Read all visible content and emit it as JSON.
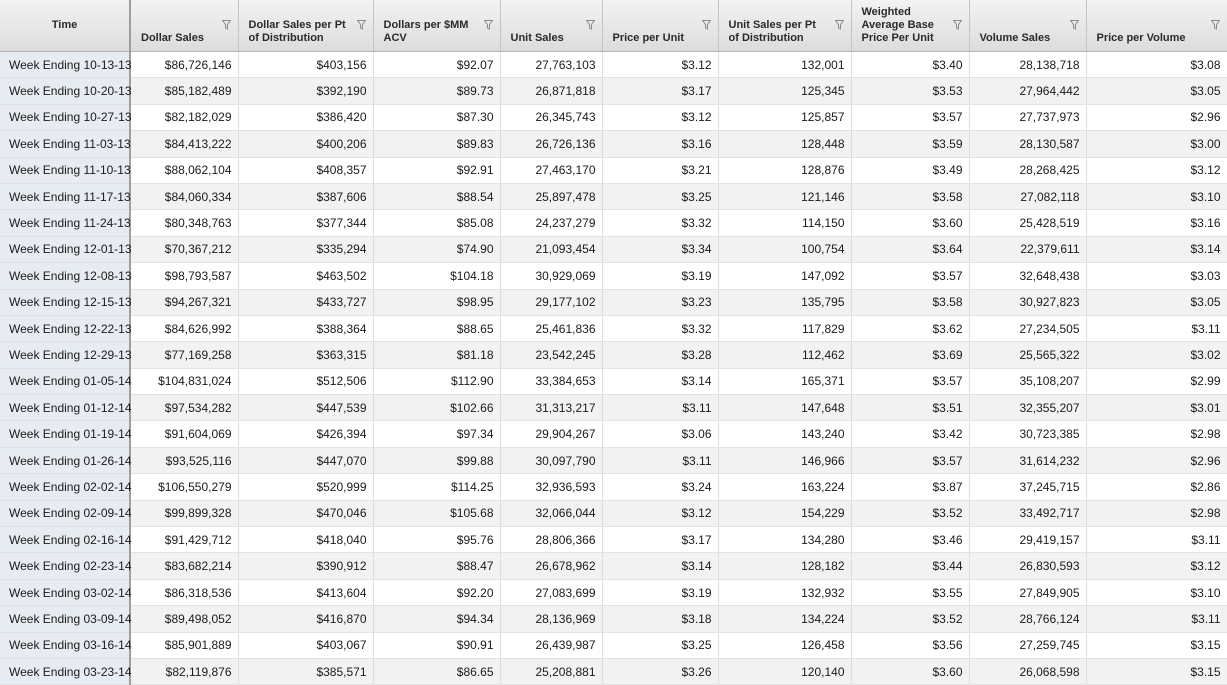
{
  "columns": [
    "Time",
    "Dollar Sales",
    "Dollar Sales per Pt of Distribution",
    "Dollars per $MM ACV",
    "Unit Sales",
    "Price per Unit",
    "Unit Sales per Pt of Distribution",
    "Weighted Average Base Price Per Unit",
    "Volume Sales",
    "Price per Volume"
  ],
  "icons": {
    "filter": "filter-funnel-icon"
  },
  "rows": [
    [
      "Week Ending 10-13-13",
      "$86,726,146",
      "$403,156",
      "$92.07",
      "27,763,103",
      "$3.12",
      "132,001",
      "$3.40",
      "28,138,718",
      "$3.08"
    ],
    [
      "Week Ending 10-20-13",
      "$85,182,489",
      "$392,190",
      "$89.73",
      "26,871,818",
      "$3.17",
      "125,345",
      "$3.53",
      "27,964,442",
      "$3.05"
    ],
    [
      "Week Ending 10-27-13",
      "$82,182,029",
      "$386,420",
      "$87.30",
      "26,345,743",
      "$3.12",
      "125,857",
      "$3.57",
      "27,737,973",
      "$2.96"
    ],
    [
      "Week Ending 11-03-13",
      "$84,413,222",
      "$400,206",
      "$89.83",
      "26,726,136",
      "$3.16",
      "128,448",
      "$3.59",
      "28,130,587",
      "$3.00"
    ],
    [
      "Week Ending 11-10-13",
      "$88,062,104",
      "$408,357",
      "$92.91",
      "27,463,170",
      "$3.21",
      "128,876",
      "$3.49",
      "28,268,425",
      "$3.12"
    ],
    [
      "Week Ending 11-17-13",
      "$84,060,334",
      "$387,606",
      "$88.54",
      "25,897,478",
      "$3.25",
      "121,146",
      "$3.58",
      "27,082,118",
      "$3.10"
    ],
    [
      "Week Ending 11-24-13",
      "$80,348,763",
      "$377,344",
      "$85.08",
      "24,237,279",
      "$3.32",
      "114,150",
      "$3.60",
      "25,428,519",
      "$3.16"
    ],
    [
      "Week Ending 12-01-13",
      "$70,367,212",
      "$335,294",
      "$74.90",
      "21,093,454",
      "$3.34",
      "100,754",
      "$3.64",
      "22,379,611",
      "$3.14"
    ],
    [
      "Week Ending 12-08-13",
      "$98,793,587",
      "$463,502",
      "$104.18",
      "30,929,069",
      "$3.19",
      "147,092",
      "$3.57",
      "32,648,438",
      "$3.03"
    ],
    [
      "Week Ending 12-15-13",
      "$94,267,321",
      "$433,727",
      "$98.95",
      "29,177,102",
      "$3.23",
      "135,795",
      "$3.58",
      "30,927,823",
      "$3.05"
    ],
    [
      "Week Ending 12-22-13",
      "$84,626,992",
      "$388,364",
      "$88.65",
      "25,461,836",
      "$3.32",
      "117,829",
      "$3.62",
      "27,234,505",
      "$3.11"
    ],
    [
      "Week Ending 12-29-13",
      "$77,169,258",
      "$363,315",
      "$81.18",
      "23,542,245",
      "$3.28",
      "112,462",
      "$3.69",
      "25,565,322",
      "$3.02"
    ],
    [
      "Week Ending 01-05-14",
      "$104,831,024",
      "$512,506",
      "$112.90",
      "33,384,653",
      "$3.14",
      "165,371",
      "$3.57",
      "35,108,207",
      "$2.99"
    ],
    [
      "Week Ending 01-12-14",
      "$97,534,282",
      "$447,539",
      "$102.66",
      "31,313,217",
      "$3.11",
      "147,648",
      "$3.51",
      "32,355,207",
      "$3.01"
    ],
    [
      "Week Ending 01-19-14",
      "$91,604,069",
      "$426,394",
      "$97.34",
      "29,904,267",
      "$3.06",
      "143,240",
      "$3.42",
      "30,723,385",
      "$2.98"
    ],
    [
      "Week Ending 01-26-14",
      "$93,525,116",
      "$447,070",
      "$99.88",
      "30,097,790",
      "$3.11",
      "146,966",
      "$3.57",
      "31,614,232",
      "$2.96"
    ],
    [
      "Week Ending 02-02-14",
      "$106,550,279",
      "$520,999",
      "$114.25",
      "32,936,593",
      "$3.24",
      "163,224",
      "$3.87",
      "37,245,715",
      "$2.86"
    ],
    [
      "Week Ending 02-09-14",
      "$99,899,328",
      "$470,046",
      "$105.68",
      "32,066,044",
      "$3.12",
      "154,229",
      "$3.52",
      "33,492,717",
      "$2.98"
    ],
    [
      "Week Ending 02-16-14",
      "$91,429,712",
      "$418,040",
      "$95.76",
      "28,806,366",
      "$3.17",
      "134,280",
      "$3.46",
      "29,419,157",
      "$3.11"
    ],
    [
      "Week Ending 02-23-14",
      "$83,682,214",
      "$390,912",
      "$88.47",
      "26,678,962",
      "$3.14",
      "128,182",
      "$3.44",
      "26,830,593",
      "$3.12"
    ],
    [
      "Week Ending 03-02-14",
      "$86,318,536",
      "$413,604",
      "$92.20",
      "27,083,699",
      "$3.19",
      "132,932",
      "$3.55",
      "27,849,905",
      "$3.10"
    ],
    [
      "Week Ending 03-09-14",
      "$89,498,052",
      "$416,870",
      "$94.34",
      "28,136,969",
      "$3.18",
      "134,224",
      "$3.52",
      "28,766,124",
      "$3.11"
    ],
    [
      "Week Ending 03-16-14",
      "$85,901,889",
      "$403,067",
      "$90.91",
      "26,439,987",
      "$3.25",
      "126,458",
      "$3.56",
      "27,259,745",
      "$3.15"
    ],
    [
      "Week Ending 03-23-14",
      "$82,119,876",
      "$385,571",
      "$86.65",
      "25,208,881",
      "$3.26",
      "120,140",
      "$3.60",
      "26,068,598",
      "$3.15"
    ]
  ]
}
